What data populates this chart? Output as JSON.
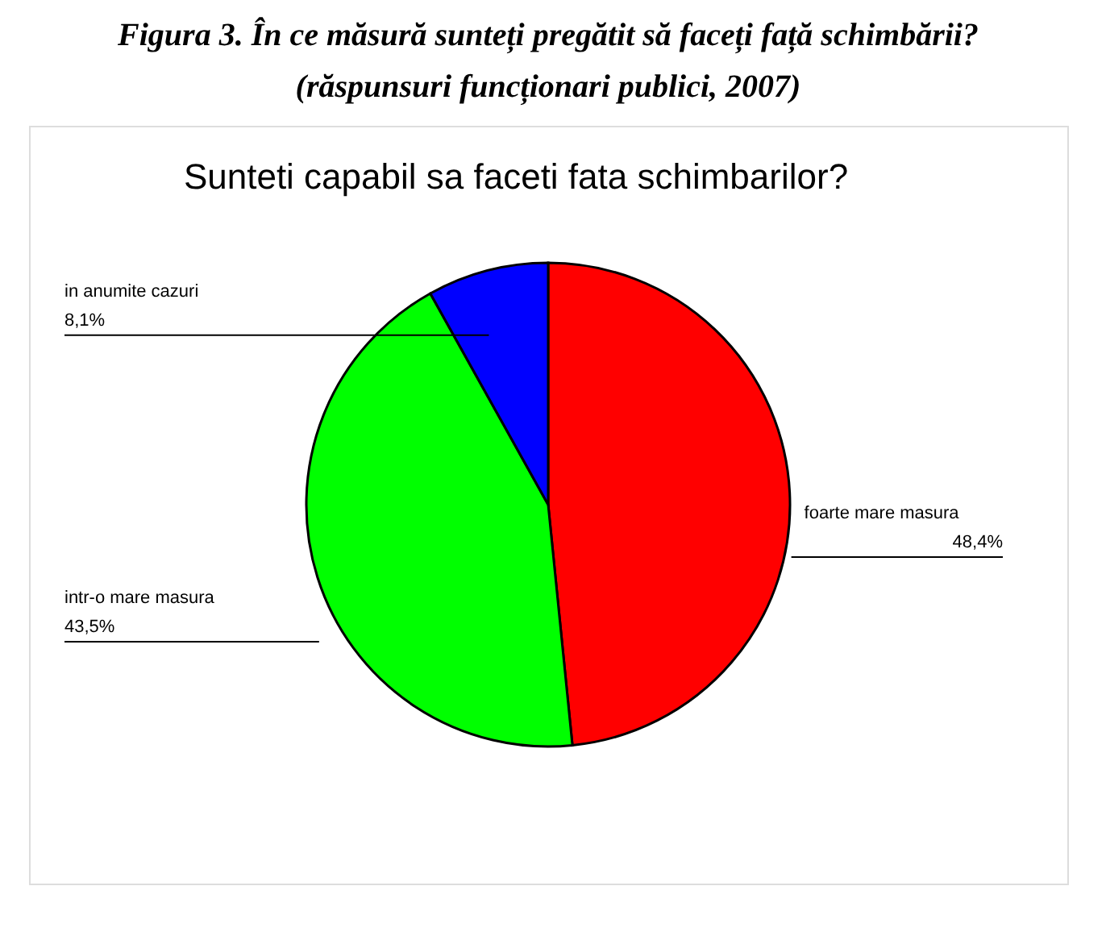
{
  "chart_data": {
    "type": "pie",
    "title": "Figura 3. În ce măsură sunteți pregătit să faceți față schimbării?",
    "subtitle": "(răspunsuri funcționari publici, 2007)",
    "annotations": [
      "Sunteti capabil sa faceti fata schimbarilor?"
    ],
    "categories": [
      "foarte mare masura",
      "intr-o mare masura",
      "in anumite cazuri"
    ],
    "values": [
      48.4,
      43.5,
      8.1
    ],
    "value_labels": [
      "48,4%",
      "43,5%",
      "8,1%"
    ],
    "colors": [
      "#ff0000",
      "#00ff00",
      "#0000ff"
    ],
    "legend": false
  }
}
